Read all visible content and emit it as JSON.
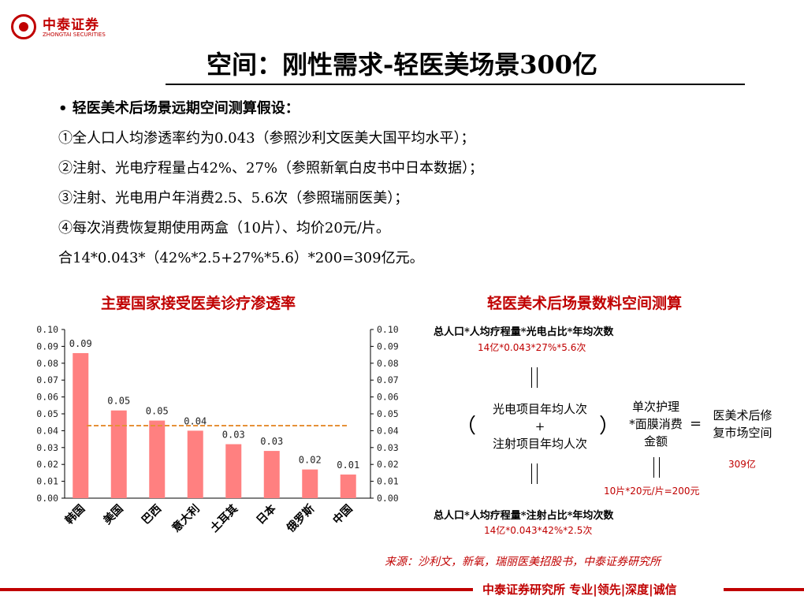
{
  "logo": {
    "name": "中泰证券",
    "sub": "ZHONGTAI SECURITIES"
  },
  "title": "空间：刚性需求-轻医美场景300亿",
  "bullets": [
    "• 轻医美术后场景远期空间测算假设：",
    "①全人口人均渗透率约为0.043（参照沙利文医美大国平均水平）；",
    "②注射、光电疗程量占42%、27%（参照新氧白皮书中日本数据）；",
    "③注射、光电用户年消费2.5、5.6次（参照瑞丽医美）；",
    "④每次消费恢复期使用两盒（10片）、均价20元/片。",
    "合14*0.043*（42%*2.5+27%*5.6）*200=309亿元。"
  ],
  "left_chart_title": "主要国家接受医美诊疗渗透率",
  "right_chart_title": "轻医美术后场景数料空间测算",
  "chart_data": {
    "type": "bar",
    "categories": [
      "韩国",
      "美国",
      "巴西",
      "意大利",
      "土耳其",
      "日本",
      "俄罗斯",
      "中国"
    ],
    "values": [
      0.086,
      0.052,
      0.046,
      0.04,
      0.032,
      0.028,
      0.017,
      0.014
    ],
    "data_labels": [
      "0.09",
      "0.05",
      "0.05",
      "0.04",
      "0.03",
      "0.03",
      "0.02",
      "0.01"
    ],
    "y_ticks": [
      "0.00",
      "0.01",
      "0.02",
      "0.03",
      "0.04",
      "0.05",
      "0.06",
      "0.07",
      "0.08",
      "0.09",
      "0.10"
    ],
    "ylim": [
      0,
      0.1
    ],
    "average_line": 0.043,
    "bar_color": "#ff8080",
    "avg_color": "#e69138",
    "grid": false,
    "secondary_axis": true
  },
  "formula": {
    "top_caption": "总人口*人均疗程量*光电占比*年均次数",
    "top_values": "14亿*0.043*27%*5.6次",
    "left_paren": "（",
    "line1": "光电项目年均人次",
    "plus": "+",
    "line2": "注射项目年均人次",
    "right_paren": "）",
    "mid_top": "单次护理",
    "mid_mid": "*面膜消费",
    "mid_bot": "金额",
    "equals": "=",
    "result_line1": "医美术后修",
    "result_line2": "复市场空间",
    "result_value": "309亿",
    "mid_values": "10片*20元/片=200元",
    "bottom_caption": "总人口*人均疗程量*注射占比*年均次数",
    "bottom_values": "14亿*0.043*42%*2.5次"
  },
  "source": "来源：沙利文，新氧，瑞丽医美招股书，中泰证券研究所",
  "footer": "中泰证券研究所 专业|领先|深度|诚信"
}
